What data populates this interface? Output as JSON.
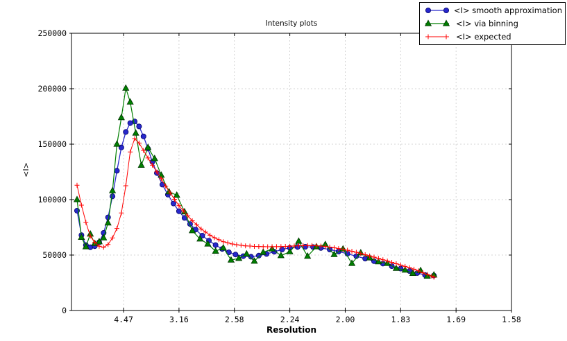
{
  "chart_data": {
    "type": "line",
    "title": "Intensity plots",
    "xlabel": "Resolution",
    "ylabel": "<I>",
    "grid": true,
    "grid_color": "#c9c9c9",
    "axis_color": "#000000",
    "legend_position": "top-right",
    "x_axis": {
      "tick_labels": [
        "4.47",
        "3.16",
        "2.58",
        "2.24",
        "2.00",
        "1.83",
        "1.69",
        "1.58"
      ],
      "tick_positions_s": [
        0.05,
        0.1,
        0.15,
        0.2,
        0.25,
        0.3,
        0.35,
        0.4
      ],
      "range_s": [
        0.003,
        0.4
      ]
    },
    "y_axis": {
      "tick_labels": [
        "0",
        "50000",
        "100000",
        "150000",
        "200000",
        "250000"
      ],
      "tick_values": [
        0,
        50000,
        100000,
        150000,
        200000,
        250000
      ],
      "range": [
        0,
        250000
      ]
    },
    "series": [
      {
        "id": "smooth-approximation",
        "name": "<I> smooth approximation",
        "marker": "circle",
        "color": "#2727cc",
        "edge_color": "#000066",
        "line_width": 1.3,
        "s": [
          0.008,
          0.012,
          0.016,
          0.02,
          0.024,
          0.028,
          0.032,
          0.036,
          0.04,
          0.044,
          0.048,
          0.052,
          0.056,
          0.06,
          0.064,
          0.068,
          0.072,
          0.076,
          0.08,
          0.085,
          0.09,
          0.095,
          0.1,
          0.105,
          0.11,
          0.115,
          0.121,
          0.127,
          0.133,
          0.139,
          0.145,
          0.151,
          0.158,
          0.165,
          0.172,
          0.179,
          0.186,
          0.193,
          0.2,
          0.207,
          0.214,
          0.221,
          0.228,
          0.236,
          0.244,
          0.252,
          0.26,
          0.268,
          0.276,
          0.284,
          0.292,
          0.3,
          0.308,
          0.315,
          0.322,
          0.33
        ],
        "values": [
          90000,
          68000,
          59000,
          57000,
          58000,
          61500,
          70000,
          84000,
          103000,
          126000,
          147000,
          161000,
          169000,
          170500,
          166000,
          157000,
          146000,
          134000,
          124000,
          113500,
          104500,
          96500,
          89500,
          83500,
          78000,
          73000,
          67500,
          63000,
          59000,
          55500,
          52500,
          50500,
          49000,
          48500,
          49500,
          51000,
          53000,
          55000,
          56500,
          57300,
          57500,
          57200,
          56400,
          55000,
          53200,
          51200,
          49000,
          46800,
          44500,
          42300,
          40000,
          37800,
          35600,
          33800,
          32000,
          31500
        ]
      },
      {
        "id": "via-binning",
        "name": "<I> via binning",
        "marker": "triangle-up",
        "color": "#007f00",
        "edge_color": "#003300",
        "line_width": 1.2,
        "s": [
          0.008,
          0.012,
          0.016,
          0.02,
          0.024,
          0.028,
          0.032,
          0.036,
          0.04,
          0.044,
          0.048,
          0.052,
          0.056,
          0.061,
          0.066,
          0.072,
          0.078,
          0.084,
          0.091,
          0.098,
          0.105,
          0.112,
          0.119,
          0.126,
          0.133,
          0.14,
          0.147,
          0.154,
          0.161,
          0.168,
          0.176,
          0.184,
          0.192,
          0.2,
          0.208,
          0.216,
          0.224,
          0.232,
          0.24,
          0.248,
          0.256,
          0.264,
          0.272,
          0.28,
          0.288,
          0.296,
          0.304,
          0.311,
          0.318,
          0.324,
          0.33
        ],
        "values": [
          100000,
          66000,
          57500,
          69000,
          60500,
          62000,
          65500,
          79000,
          108000,
          150000,
          174000,
          200500,
          188000,
          160000,
          131000,
          147000,
          137000,
          122000,
          107000,
          104000,
          89000,
          72000,
          64500,
          60000,
          53500,
          56500,
          45500,
          47000,
          51000,
          44500,
          52500,
          55500,
          49500,
          53000,
          62500,
          49000,
          57500,
          59500,
          50500,
          55500,
          42500,
          52000,
          47500,
          44000,
          42500,
          38000,
          36500,
          33500,
          36000,
          31000,
          32000
        ]
      },
      {
        "id": "expected",
        "name": "<I> expected",
        "marker": "plus",
        "color": "#ff0000",
        "edge_color": "#ff0000",
        "line_width": 1.0,
        "s": [
          0.008,
          0.012,
          0.016,
          0.02,
          0.024,
          0.028,
          0.032,
          0.036,
          0.04,
          0.044,
          0.048,
          0.052,
          0.056,
          0.06,
          0.064,
          0.068,
          0.072,
          0.076,
          0.08,
          0.084,
          0.088,
          0.092,
          0.096,
          0.1,
          0.104,
          0.108,
          0.112,
          0.116,
          0.12,
          0.124,
          0.128,
          0.132,
          0.136,
          0.14,
          0.144,
          0.148,
          0.152,
          0.156,
          0.16,
          0.164,
          0.168,
          0.172,
          0.176,
          0.18,
          0.184,
          0.188,
          0.192,
          0.196,
          0.2,
          0.204,
          0.208,
          0.212,
          0.216,
          0.22,
          0.224,
          0.228,
          0.232,
          0.236,
          0.24,
          0.244,
          0.248,
          0.252,
          0.256,
          0.26,
          0.264,
          0.268,
          0.272,
          0.276,
          0.28,
          0.284,
          0.288,
          0.292,
          0.296,
          0.3,
          0.304,
          0.308,
          0.312,
          0.316,
          0.32,
          0.324,
          0.328,
          0.33
        ],
        "values": [
          113000,
          95000,
          79500,
          67000,
          61500,
          58000,
          57000,
          59500,
          65500,
          74000,
          88000,
          112500,
          143000,
          155000,
          151000,
          144300,
          137600,
          131000,
          125000,
          118800,
          112200,
          106100,
          100300,
          94500,
          89900,
          85300,
          80900,
          77300,
          73500,
          70700,
          67900,
          65600,
          63800,
          62000,
          61000,
          60000,
          59300,
          58800,
          58300,
          58100,
          57800,
          57700,
          57600,
          57500,
          57540,
          57580,
          57680,
          57840,
          58000,
          58200,
          58400,
          58520,
          58560,
          58600,
          58360,
          58120,
          57720,
          57160,
          56600,
          55880,
          55160,
          54340,
          53420,
          52500,
          51420,
          50340,
          49240,
          48120,
          47000,
          45800,
          44600,
          43400,
          42200,
          41000,
          39800,
          38600,
          37250,
          35750,
          34000,
          32500,
          31000,
          30000
        ]
      }
    ]
  }
}
